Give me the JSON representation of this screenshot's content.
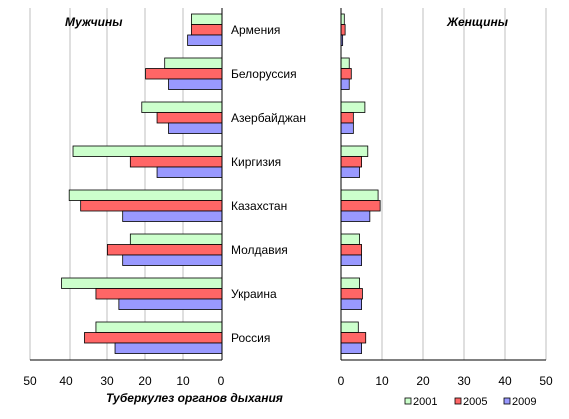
{
  "chart_data": {
    "type": "bar",
    "orientation": "horizontal",
    "xlabel": "Туберкулез органов дыхания",
    "categories": [
      "Армения",
      "Белоруссия",
      "Азербайджан",
      "Киргизия",
      "Казахстан",
      "Молдавия",
      "Украина",
      "Россия"
    ],
    "panels": [
      {
        "title": "Мужчины",
        "direction": "reversed",
        "xlim": [
          0,
          50
        ],
        "ticks": [
          50,
          40,
          30,
          20,
          10,
          0
        ],
        "series": [
          {
            "name": "2001",
            "color": "#ccffcc",
            "values": [
              8,
              15,
              21,
              39,
              40,
              24,
              42,
              33
            ]
          },
          {
            "name": "2005",
            "color": "#ff6666",
            "values": [
              8,
              20,
              17,
              24,
              37,
              30,
              33,
              36
            ]
          },
          {
            "name": "2009",
            "color": "#9999ff",
            "values": [
              9,
              14,
              14,
              17,
              26,
              26,
              27,
              28
            ]
          }
        ]
      },
      {
        "title": "Женщины",
        "direction": "normal",
        "xlim": [
          0,
          50
        ],
        "ticks": [
          0,
          10,
          20,
          30,
          40,
          50
        ],
        "series": [
          {
            "name": "2001",
            "color": "#ccffcc",
            "values": [
              0.8,
              2,
              5.8,
              6.5,
              9,
              4.5,
              4.5,
              4.2
            ]
          },
          {
            "name": "2005",
            "color": "#ff6666",
            "values": [
              1,
              2.5,
              3,
              5,
              9.5,
              5,
              5.2,
              6
            ]
          },
          {
            "name": "2009",
            "color": "#9999ff",
            "values": [
              0.4,
              2,
              3,
              4.5,
              7,
              5,
              5,
              5
            ]
          }
        ]
      }
    ],
    "legend": {
      "position": "bottom-right",
      "entries": [
        "2001",
        "2005",
        "2009"
      ]
    }
  }
}
